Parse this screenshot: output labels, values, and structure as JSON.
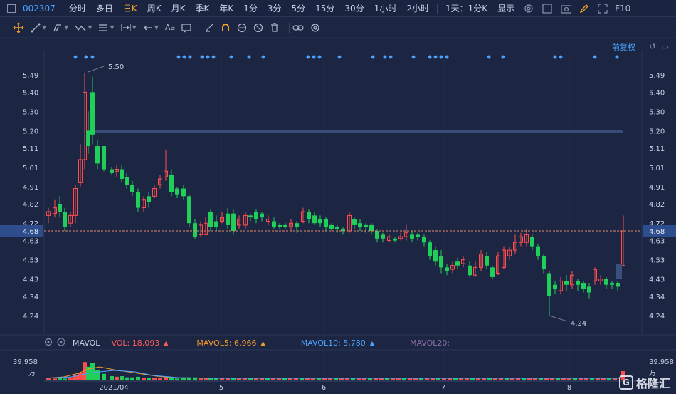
{
  "toolbar": {
    "code": "002307",
    "periods": [
      "分时",
      "多日",
      "日K",
      "周K",
      "月K",
      "季K",
      "年K",
      "1分",
      "3分",
      "5分",
      "15分",
      "30分",
      "1小时",
      "2小时",
      "1天：1分K",
      "显示"
    ],
    "active_period": "日K",
    "fio": "F10"
  },
  "drawbar": {
    "text_tool": "Aa"
  },
  "chart": {
    "price_ticks": [
      "5.49",
      "5.40",
      "5.30",
      "5.20",
      "5.11",
      "5.01",
      "4.91",
      "4.82",
      "4.72",
      "4.68",
      "4.63",
      "4.53",
      "4.43",
      "4.34",
      "4.24"
    ],
    "current_price": "4.68",
    "high_label": "5.50",
    "low_label": "4.24",
    "adjust_label": "前复权",
    "x_labels": [
      "2021/04",
      "5",
      "6",
      "7",
      "8"
    ],
    "volume_top": "39.958",
    "volume_unit": "万",
    "colors": {
      "up": "#ff4d4d",
      "down": "#1fcf5a",
      "grid": "#2a3558",
      "bg": "#1c2542",
      "accent": "#f3a52b",
      "blue": "#4aa3ff"
    }
  },
  "mavol": {
    "title": "MAVOL",
    "vol": "VOL: 18.093",
    "ma5": "MAVOL5: 6.966",
    "ma10": "MAVOL10: 5.780",
    "ma20": "MAVOL20:"
  },
  "logo": {
    "text": "格隆汇"
  }
}
